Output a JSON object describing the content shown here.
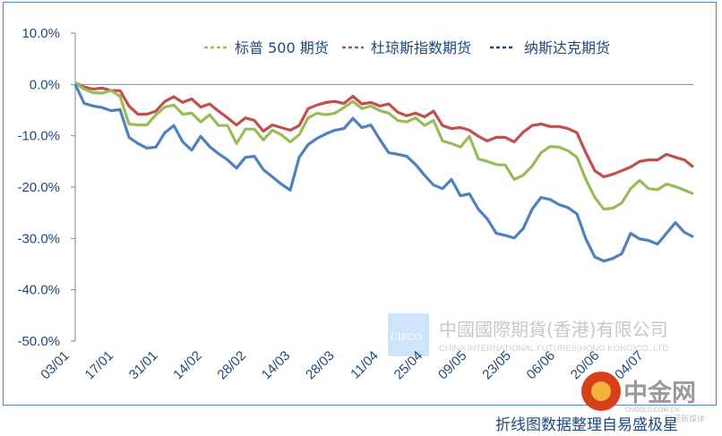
{
  "chart_data": {
    "type": "line",
    "title": "",
    "xlabel": "",
    "ylabel": "",
    "ylim": [
      -50,
      10
    ],
    "y_ticks": [
      "10.0%",
      "0.0%",
      "-10.0%",
      "-20.0%",
      "-30.0%",
      "-40.0%",
      "-50.0%"
    ],
    "y_tick_values": [
      10,
      0,
      -10,
      -20,
      -30,
      -40,
      -50
    ],
    "x_ticks": [
      "03/01",
      "17/01",
      "31/01",
      "14/02",
      "28/02",
      "14/03",
      "28/03",
      "11/04",
      "25/04",
      "09/05",
      "23/05",
      "06/06",
      "20/06",
      "04/07"
    ],
    "grid": false,
    "legend_position": "top",
    "series": [
      {
        "name": "标普 500 期货",
        "color": "#9bbb59",
        "values": [
          0.3,
          -0.9,
          -1.6,
          -1.7,
          -1.2,
          -2.3,
          -7.7,
          -7.9,
          -7.9,
          -5.9,
          -4.4,
          -4.0,
          -5.8,
          -5.6,
          -7.3,
          -5.9,
          -8.0,
          -8.0,
          -11.5,
          -8.7,
          -8.7,
          -10.8,
          -8.9,
          -9.8,
          -11.2,
          -9.8,
          -6.5,
          -5.6,
          -5.9,
          -5.6,
          -4.5,
          -3.3,
          -4.7,
          -4.2,
          -5.1,
          -5.6,
          -7.0,
          -7.3,
          -6.5,
          -8.0,
          -7.0,
          -11.0,
          -11.5,
          -12.2,
          -10.1,
          -14.5,
          -15.0,
          -15.6,
          -15.7,
          -18.5,
          -17.7,
          -15.9,
          -13.3,
          -12.1,
          -12.2,
          -12.9,
          -14.2,
          -18.5,
          -22.0,
          -24.3,
          -24.1,
          -23.1,
          -20.3,
          -18.7,
          -20.3,
          -20.5,
          -19.4,
          -19.9,
          -20.6,
          -21.3
        ]
      },
      {
        "name": "杜琼斯指数期货",
        "color": "#c0504d",
        "values": [
          0.3,
          -0.5,
          -0.9,
          -0.7,
          -1.2,
          -1.2,
          -4.2,
          -5.8,
          -5.8,
          -5.2,
          -3.3,
          -2.4,
          -3.5,
          -2.8,
          -4.4,
          -3.8,
          -5.2,
          -6.5,
          -7.9,
          -6.5,
          -7.0,
          -9.1,
          -7.9,
          -8.4,
          -8.9,
          -8.0,
          -4.7,
          -4.0,
          -3.5,
          -3.3,
          -3.7,
          -2.3,
          -3.8,
          -3.5,
          -4.2,
          -3.8,
          -5.4,
          -6.1,
          -5.6,
          -6.3,
          -5.2,
          -8.0,
          -8.6,
          -8.4,
          -8.9,
          -10.1,
          -11.0,
          -10.3,
          -10.3,
          -11.2,
          -9.3,
          -8.0,
          -7.7,
          -8.2,
          -8.2,
          -8.6,
          -9.4,
          -13.3,
          -16.8,
          -18.0,
          -17.5,
          -16.8,
          -16.1,
          -15.0,
          -14.7,
          -14.7,
          -13.6,
          -14.2,
          -14.7,
          -16.1
        ]
      },
      {
        "name": "纳斯达克期货",
        "color": "#4f81bd",
        "values": [
          0,
          -3.7,
          -4.2,
          -4.5,
          -5.1,
          -4.9,
          -10.3,
          -11.5,
          -12.4,
          -12.2,
          -9.4,
          -8.0,
          -11.2,
          -12.8,
          -10.1,
          -12.1,
          -13.5,
          -14.7,
          -16.3,
          -14.2,
          -14.0,
          -16.6,
          -18.0,
          -19.4,
          -20.6,
          -14.2,
          -11.7,
          -10.5,
          -9.6,
          -8.9,
          -8.6,
          -6.6,
          -8.4,
          -7.9,
          -10.7,
          -13.3,
          -13.6,
          -14.0,
          -15.6,
          -17.7,
          -19.6,
          -20.3,
          -18.5,
          -21.7,
          -21.3,
          -24.3,
          -26.2,
          -29.0,
          -29.4,
          -29.9,
          -28.1,
          -24.3,
          -22.0,
          -22.4,
          -23.4,
          -24.0,
          -25.2,
          -30.1,
          -33.6,
          -34.4,
          -33.9,
          -33.0,
          -29.0,
          -30.1,
          -30.4,
          -31.1,
          -29.0,
          -26.9,
          -28.8,
          -29.7
        ]
      }
    ]
  },
  "legend_colors": {
    "sp500": "#9bbb59",
    "dow": "#c0504d",
    "nasdaq": "#4f81bd"
  },
  "watermark": {
    "cifco_logo": "CIFCO",
    "company_cn": "中國國際期貨(香港)有限公司",
    "company_en": "CHINA INTERNATIONAL FUTURES(HONG KONG)CO.,LTD.",
    "cngold_name": "中金网",
    "cngold_url": "CNGOLD.COM.CN",
    "cngold_tag": "财经新媒体"
  },
  "footer": "折线图数据整理自易盛极星"
}
